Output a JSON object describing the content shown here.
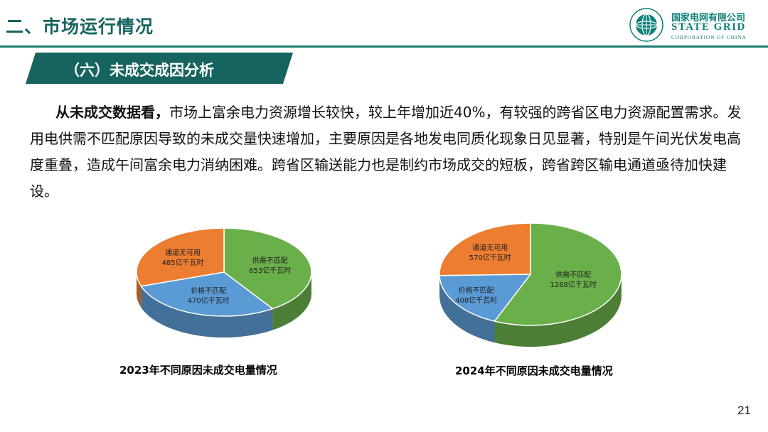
{
  "header": {
    "section_title": "二、市场运行情况",
    "logo_cn": "国家电网有限公司",
    "logo_en": "STATE GRID",
    "logo_sub": "CORPORATION OF CHINA"
  },
  "banner": {
    "title": "（六）未成交成因分析"
  },
  "body": {
    "lead": "从未成交数据看，",
    "text": "市场上富余电力资源增长较快，较上年增加近40%，有较强的跨省区电力资源配置需求。发用电供需不匹配原因导致的未成交量快速增加，主要原因是各地发电同质化现象日见显著，特别是午间光伏发电高度重叠，造成午间富余电力消纳困难。跨省区输送能力也是制约市场成交的短板，跨省跨区输电通道亟待加快建设。"
  },
  "chart_data": [
    {
      "type": "pie",
      "title": "2023年不同原因未成交电量情况",
      "unit": "亿千瓦时",
      "slices": [
        {
          "label": "供需不匹配",
          "value": 653,
          "value_text": "653亿千瓦时",
          "color": "#6ab04a"
        },
        {
          "label": "价格不匹配",
          "value": 470,
          "value_text": "470亿千瓦时",
          "color": "#5b9bd5"
        },
        {
          "label": "通道无可用",
          "value": 485,
          "value_text": "485亿千瓦时",
          "color": "#ed7d31"
        }
      ]
    },
    {
      "type": "pie",
      "title": "2024年不同原因未成交电量情况",
      "unit": "亿千瓦时",
      "slices": [
        {
          "label": "供需不匹配",
          "value": 1268,
          "value_text": "1268亿千瓦时",
          "color": "#6ab04a"
        },
        {
          "label": "价格不匹配",
          "value": 408,
          "value_text": "408亿千瓦时",
          "color": "#5b9bd5"
        },
        {
          "label": "通道无可用",
          "value": 570,
          "value_text": "570亿千瓦时",
          "color": "#ed7d31"
        }
      ]
    }
  ],
  "page_number": "21"
}
